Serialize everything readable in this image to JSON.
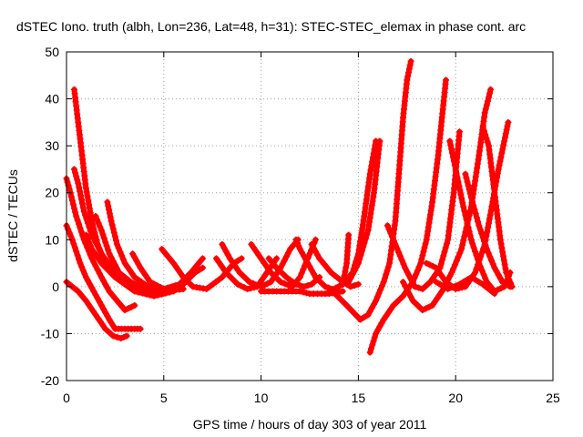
{
  "chart_data": {
    "type": "scatter",
    "title": "dSTEC Iono. truth (albh, Lon=236, Lat=48, h=31): STEC-STEC_elemax in phase cont. arc",
    "xlabel": "GPS time / hours of day 303 of year 2011",
    "ylabel": "dSTEC  / TECUs",
    "xlim": [
      0,
      25
    ],
    "ylim": [
      -20,
      50
    ],
    "xticks": [
      0,
      5,
      10,
      15,
      20,
      25
    ],
    "yticks": [
      -20,
      -10,
      0,
      10,
      20,
      30,
      40,
      50
    ],
    "grid": true,
    "marker": "plus",
    "color": "#ff0000",
    "series": [
      {
        "points": [
          [
            0.4,
            42
          ],
          [
            0.6,
            35
          ],
          [
            0.8,
            28
          ],
          [
            1.0,
            21
          ],
          [
            1.3,
            14
          ],
          [
            1.6,
            9
          ],
          [
            2.0,
            5
          ],
          [
            2.5,
            2
          ],
          [
            3.2,
            0
          ],
          [
            4.0,
            -0.5
          ],
          [
            5.0,
            -0.5
          ],
          [
            6.0,
            0.5
          ],
          [
            6.6,
            3
          ],
          [
            7.0,
            4
          ]
        ]
      },
      {
        "points": [
          [
            0.0,
            23
          ],
          [
            0.2,
            20
          ],
          [
            0.5,
            15
          ],
          [
            0.9,
            10
          ],
          [
            1.3,
            6
          ],
          [
            1.8,
            2
          ],
          [
            2.2,
            -1
          ],
          [
            2.6,
            -3
          ],
          [
            3.0,
            -5
          ],
          [
            3.5,
            -4
          ]
        ]
      },
      {
        "points": [
          [
            0.4,
            25
          ],
          [
            0.6,
            22
          ],
          [
            0.9,
            16
          ],
          [
            1.3,
            11
          ],
          [
            1.8,
            7
          ],
          [
            2.5,
            3
          ],
          [
            3.2,
            0.5
          ],
          [
            4.0,
            -1
          ],
          [
            5.0,
            -1
          ],
          [
            6.0,
            -0.5
          ]
        ]
      },
      {
        "points": [
          [
            0.0,
            13
          ],
          [
            0.3,
            10
          ],
          [
            0.7,
            5
          ],
          [
            1.0,
            2
          ],
          [
            1.4,
            -1
          ],
          [
            1.8,
            -4
          ],
          [
            2.2,
            -7
          ],
          [
            2.5,
            -9
          ],
          [
            3.0,
            -9
          ],
          [
            3.5,
            -9
          ],
          [
            3.8,
            -9
          ]
        ]
      },
      {
        "points": [
          [
            0.0,
            1
          ],
          [
            0.3,
            0
          ],
          [
            0.6,
            -1
          ],
          [
            1.0,
            -3
          ],
          [
            1.5,
            -6
          ],
          [
            2.0,
            -9
          ],
          [
            2.4,
            -10.5
          ],
          [
            2.8,
            -11
          ],
          [
            3.1,
            -10.5
          ]
        ]
      },
      {
        "points": [
          [
            1.5,
            15
          ],
          [
            1.8,
            12
          ],
          [
            2.2,
            7
          ],
          [
            2.7,
            3
          ],
          [
            3.3,
            1
          ],
          [
            4.0,
            -0.5
          ],
          [
            5.0,
            -1
          ],
          [
            6.0,
            -0.5
          ]
        ]
      },
      {
        "points": [
          [
            2.1,
            18
          ],
          [
            2.3,
            14
          ],
          [
            2.6,
            9
          ],
          [
            3.0,
            5
          ],
          [
            3.5,
            2
          ],
          [
            4.2,
            0
          ],
          [
            5.0,
            -1
          ]
        ]
      },
      {
        "points": [
          [
            1.0,
            11
          ],
          [
            1.3,
            8
          ],
          [
            1.8,
            5
          ],
          [
            2.5,
            2
          ],
          [
            3.5,
            -1
          ],
          [
            4.5,
            -2
          ],
          [
            5.5,
            -1
          ]
        ]
      },
      {
        "points": [
          [
            3.4,
            7
          ],
          [
            3.8,
            4
          ],
          [
            4.3,
            1
          ],
          [
            5.0,
            -0.5
          ],
          [
            5.8,
            0.5
          ],
          [
            6.4,
            3
          ],
          [
            7.0,
            6
          ]
        ]
      },
      {
        "points": [
          [
            4.9,
            8
          ],
          [
            5.5,
            5
          ],
          [
            6.0,
            2
          ],
          [
            6.5,
            0
          ],
          [
            7.2,
            -0.5
          ],
          [
            8.0,
            2
          ],
          [
            8.6,
            5
          ],
          [
            9.0,
            6
          ]
        ]
      },
      {
        "points": [
          [
            7.7,
            6
          ],
          [
            8.2,
            3
          ],
          [
            8.8,
            0.5
          ],
          [
            9.3,
            -0.5
          ],
          [
            9.8,
            0
          ],
          [
            10.3,
            3
          ],
          [
            10.8,
            6
          ]
        ]
      },
      {
        "points": [
          [
            8.0,
            9
          ],
          [
            8.4,
            6
          ],
          [
            8.9,
            3
          ],
          [
            9.4,
            1
          ],
          [
            10.0,
            0
          ],
          [
            10.5,
            1
          ],
          [
            11.0,
            4
          ],
          [
            11.5,
            8
          ],
          [
            11.9,
            10
          ]
        ]
      },
      {
        "points": [
          [
            9.5,
            9
          ],
          [
            10.0,
            6
          ],
          [
            10.5,
            3
          ],
          [
            11.0,
            1
          ],
          [
            11.6,
            0
          ],
          [
            12.0,
            2
          ],
          [
            12.5,
            7
          ],
          [
            12.8,
            10
          ]
        ]
      },
      {
        "points": [
          [
            10.4,
            6
          ],
          [
            10.8,
            4
          ],
          [
            11.3,
            2
          ],
          [
            11.8,
            0.5
          ],
          [
            12.2,
            0
          ],
          [
            12.6,
            0.5
          ],
          [
            13.0,
            2
          ]
        ]
      },
      {
        "points": [
          [
            12.6,
            9
          ],
          [
            13.0,
            6
          ],
          [
            13.6,
            3
          ],
          [
            14.2,
            1
          ],
          [
            14.6,
            0
          ],
          [
            15.0,
            0.5
          ]
        ]
      },
      {
        "points": [
          [
            11.8,
            10
          ],
          [
            12.0,
            8
          ],
          [
            12.4,
            5
          ],
          [
            12.8,
            2
          ],
          [
            13.3,
            0
          ],
          [
            14.0,
            -1
          ]
        ]
      },
      {
        "points": [
          [
            10.0,
            -1
          ],
          [
            11.0,
            -1
          ],
          [
            12.0,
            -1
          ],
          [
            12.5,
            -1.5
          ],
          [
            13.5,
            -1.5
          ],
          [
            14.2,
            -1
          ]
        ]
      },
      {
        "points": [
          [
            13.5,
            -1
          ],
          [
            14.2,
            0.5
          ],
          [
            14.7,
            3
          ],
          [
            15.0,
            7
          ],
          [
            15.3,
            15
          ],
          [
            15.6,
            24
          ],
          [
            15.9,
            31
          ]
        ]
      },
      {
        "points": [
          [
            14.5,
            1
          ],
          [
            15.0,
            5
          ],
          [
            15.5,
            12
          ],
          [
            15.8,
            20
          ],
          [
            16.1,
            31
          ]
        ]
      },
      {
        "points": [
          [
            14.2,
            0.5
          ],
          [
            14.4,
            5
          ],
          [
            14.5,
            11
          ]
        ]
      },
      {
        "points": [
          [
            13.8,
            -1.5
          ],
          [
            14.4,
            -4
          ],
          [
            15.1,
            -7
          ],
          [
            15.5,
            -6
          ],
          [
            15.9,
            -3
          ],
          [
            16.3,
            1
          ],
          [
            16.6,
            5
          ],
          [
            16.9,
            14
          ],
          [
            17.1,
            25
          ],
          [
            17.3,
            36
          ],
          [
            17.5,
            44
          ],
          [
            17.7,
            48
          ]
        ]
      },
      {
        "points": [
          [
            15.6,
            -14
          ],
          [
            15.9,
            -10
          ],
          [
            16.3,
            -7
          ],
          [
            16.8,
            -4
          ],
          [
            17.3,
            -2
          ],
          [
            17.8,
            1
          ],
          [
            18.2,
            5
          ],
          [
            18.5,
            10
          ],
          [
            18.8,
            18
          ],
          [
            19.1,
            28
          ],
          [
            19.3,
            36
          ],
          [
            19.5,
            44
          ]
        ]
      },
      {
        "points": [
          [
            16.5,
            13
          ],
          [
            16.9,
            9
          ],
          [
            17.4,
            4
          ],
          [
            17.9,
            0
          ],
          [
            18.3,
            -0.5
          ],
          [
            18.7,
            1
          ],
          [
            19.2,
            4
          ],
          [
            19.6,
            10
          ],
          [
            19.9,
            20
          ],
          [
            20.2,
            33
          ]
        ]
      },
      {
        "points": [
          [
            17.3,
            1
          ],
          [
            17.8,
            -3
          ],
          [
            18.3,
            -5
          ],
          [
            18.8,
            -4
          ],
          [
            19.3,
            -1
          ],
          [
            19.8,
            3
          ],
          [
            20.3,
            8
          ],
          [
            20.8,
            17
          ],
          [
            21.2,
            28
          ],
          [
            21.5,
            37
          ],
          [
            21.8,
            42
          ]
        ]
      },
      {
        "points": [
          [
            18.5,
            5
          ],
          [
            19.0,
            4
          ],
          [
            19.5,
            1
          ],
          [
            20.0,
            -0.5
          ],
          [
            20.5,
            0
          ],
          [
            21.0,
            3
          ],
          [
            21.5,
            9
          ],
          [
            21.9,
            18
          ],
          [
            22.2,
            25
          ],
          [
            22.5,
            31
          ],
          [
            22.7,
            35
          ]
        ]
      },
      {
        "points": [
          [
            19.7,
            31
          ],
          [
            20.0,
            25
          ],
          [
            20.4,
            17
          ],
          [
            20.8,
            10
          ],
          [
            21.2,
            5
          ],
          [
            21.6,
            1
          ],
          [
            22.0,
            -1
          ],
          [
            22.5,
            0
          ],
          [
            22.8,
            3
          ]
        ]
      },
      {
        "points": [
          [
            20.5,
            24
          ],
          [
            20.8,
            19
          ],
          [
            21.2,
            13
          ],
          [
            21.6,
            8
          ],
          [
            22.0,
            4
          ],
          [
            22.4,
            1
          ],
          [
            22.8,
            0
          ]
        ]
      },
      {
        "points": [
          [
            21.4,
            34
          ],
          [
            21.7,
            30
          ],
          [
            22.0,
            20
          ],
          [
            22.3,
            10
          ],
          [
            22.6,
            3
          ],
          [
            22.9,
            0
          ]
        ]
      },
      {
        "points": [
          [
            19.0,
            1
          ],
          [
            19.6,
            -0.5
          ],
          [
            20.2,
            0.5
          ],
          [
            20.8,
            2
          ],
          [
            21.4,
            0.5
          ],
          [
            22.0,
            -1.5
          ]
        ]
      }
    ]
  }
}
